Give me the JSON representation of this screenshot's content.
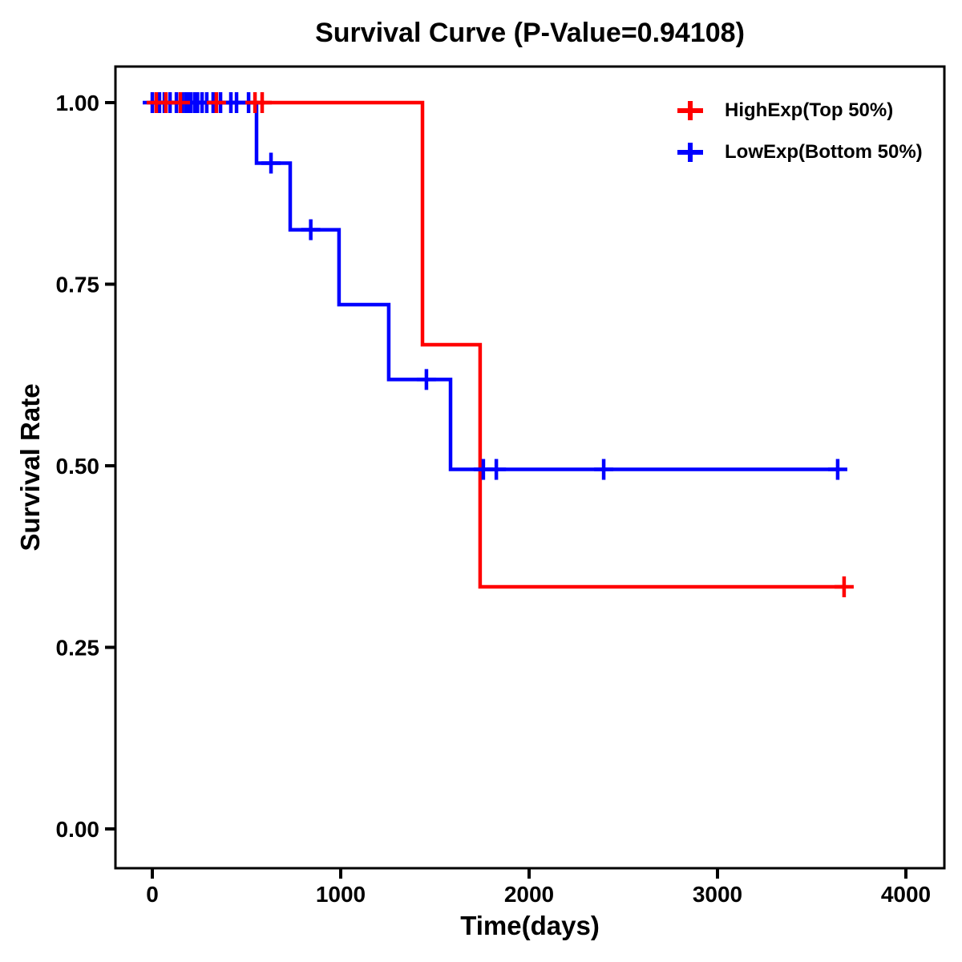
{
  "chart_data": {
    "type": "line",
    "subtype": "kaplan-meier-step-curve",
    "title": "Survival Curve (P-Value=0.94108)",
    "p_value": "0.94108",
    "xlabel": "Time(days)",
    "ylabel": "Survival Rate",
    "xlim": [
      0,
      4000
    ],
    "ylim": [
      0.0,
      1.0
    ],
    "x_ticks": [
      0,
      1000,
      2000,
      3000,
      4000
    ],
    "y_ticks": [
      0.0,
      0.25,
      0.5,
      0.75,
      1.0
    ],
    "y_tick_labels": [
      "0.00",
      "0.25",
      "0.50",
      "0.75",
      "1.00"
    ],
    "grid": false,
    "background": "#ffffff",
    "axis_color": "#000000",
    "legend_position": "top-right-inside",
    "series": [
      {
        "name": "HighExp(Top 50%)",
        "color": "#FF0000",
        "marker": "plus-censor",
        "step_points": [
          [
            0,
            1.0
          ],
          [
            1434,
            1.0
          ],
          [
            1434,
            0.6667
          ],
          [
            1740,
            0.6667
          ],
          [
            1740,
            0.3333
          ],
          [
            3672,
            0.3333
          ]
        ],
        "censors": [
          [
            21,
            1.0
          ],
          [
            72,
            1.0
          ],
          [
            149,
            1.0
          ],
          [
            340,
            1.0
          ],
          [
            545,
            1.0
          ],
          [
            583,
            1.0
          ],
          [
            3672,
            0.3333
          ]
        ]
      },
      {
        "name": "LowExp(Bottom 50%)",
        "color": "#0000FF",
        "marker": "plus-censor",
        "step_points": [
          [
            0,
            1.0
          ],
          [
            553,
            1.0
          ],
          [
            553,
            0.9167
          ],
          [
            732,
            0.9167
          ],
          [
            732,
            0.825
          ],
          [
            991,
            0.825
          ],
          [
            991,
            0.7219
          ],
          [
            1255,
            0.7219
          ],
          [
            1255,
            0.6188
          ],
          [
            1583,
            0.6188
          ],
          [
            1583,
            0.495
          ],
          [
            3638,
            0.495
          ]
        ],
        "censors": [
          [
            0,
            1.0
          ],
          [
            38,
            1.0
          ],
          [
            64,
            1.0
          ],
          [
            94,
            1.0
          ],
          [
            128,
            1.0
          ],
          [
            157,
            1.0
          ],
          [
            176,
            1.0
          ],
          [
            191,
            1.0
          ],
          [
            205,
            1.0
          ],
          [
            226,
            1.0
          ],
          [
            240,
            1.0
          ],
          [
            264,
            1.0
          ],
          [
            289,
            1.0
          ],
          [
            323,
            1.0
          ],
          [
            362,
            1.0
          ],
          [
            417,
            1.0
          ],
          [
            447,
            1.0
          ],
          [
            511,
            1.0
          ],
          [
            630,
            0.9167
          ],
          [
            841,
            0.825
          ],
          [
            1455,
            0.6188
          ],
          [
            1757,
            0.495
          ],
          [
            1826,
            0.495
          ],
          [
            2396,
            0.495
          ],
          [
            3638,
            0.495
          ]
        ]
      }
    ]
  }
}
